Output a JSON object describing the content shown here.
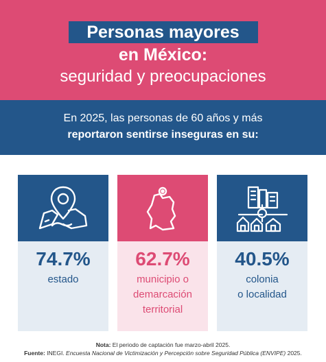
{
  "header": {
    "title_line1": "Personas mayores",
    "title_line2": "en México:",
    "title_line3": "seguridad y preocupaciones"
  },
  "intro": {
    "line1": "En 2025, las personas de 60 años y más",
    "line2": "reportaron sentirse inseguras en su:"
  },
  "cards": [
    {
      "icon": "map-pin-icon",
      "value": "74.7%",
      "label_lines": [
        "estado"
      ],
      "color": "#23568a"
    },
    {
      "icon": "municipality-map-icon",
      "value": "62.7%",
      "label_lines": [
        "municipio o",
        "demarcación",
        "territorial"
      ],
      "color": "#dd4b74"
    },
    {
      "icon": "neighborhood-icon",
      "value": "40.5%",
      "label_lines": [
        "colonia",
        "o localidad"
      ],
      "color": "#23568a"
    }
  ],
  "footer": {
    "note_label": "Nota:",
    "note_text": " El periodo de captación fue marzo-abril 2025.",
    "source_label": "Fuente:",
    "source_org": " INEGI. ",
    "source_title": "Encuesta Nacional de Victimización y Percepción sobre Seguridad Pública (ENVIPE)",
    "source_year": " 2025."
  },
  "colors": {
    "pink": "#dd4b74",
    "blue": "#23568a",
    "light_blue": "#e5ecf3",
    "light_pink": "#fae3ea"
  }
}
